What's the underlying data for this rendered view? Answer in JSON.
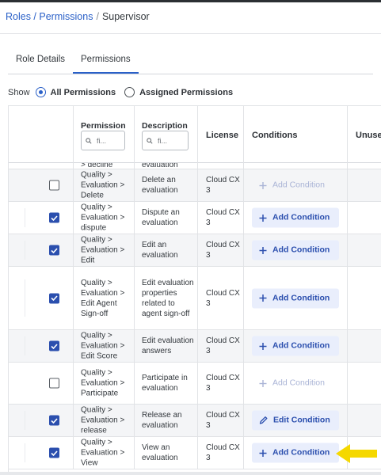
{
  "breadcrumb": {
    "link": "Roles / Permissions",
    "sep": "/",
    "current": "Supervisor"
  },
  "tabs": [
    {
      "label": "Role Details",
      "active": false
    },
    {
      "label": "Permissions",
      "active": true
    }
  ],
  "show": {
    "label": "Show",
    "options": [
      {
        "label": "All Permissions",
        "checked": true
      },
      {
        "label": "Assigned Permissions",
        "checked": false
      }
    ]
  },
  "table": {
    "headers": {
      "permission": "Permission",
      "description": "Description",
      "license": "License",
      "conditions": "Conditions",
      "unused": "Unuse"
    },
    "filter_placeholder": "fi...",
    "partial_top": {
      "permission": "> decline",
      "description": "evaluation"
    },
    "rows": [
      {
        "checked": false,
        "permission": "Quality > Evaluation > Delete",
        "description": "Delete an evaluation",
        "license": "Cloud CX 3",
        "condition": {
          "label": "Add Condition",
          "icon": "plus-icon",
          "enabled": false
        }
      },
      {
        "checked": true,
        "permission": "Quality > Evaluation > dispute",
        "description": "Dispute an evaluation",
        "license": "Cloud CX 3",
        "condition": {
          "label": "Add Condition",
          "icon": "plus-icon",
          "enabled": true
        }
      },
      {
        "checked": true,
        "permission": "Quality > Evaluation > Edit",
        "description": "Edit an evaluation",
        "license": "Cloud CX 3",
        "condition": {
          "label": "Add Condition",
          "icon": "plus-icon",
          "enabled": true
        }
      },
      {
        "checked": true,
        "permission": "Quality > Evaluation > Edit Agent Sign-off",
        "description": "Edit evaluation properties related to agent sign-off",
        "license": "Cloud CX 3",
        "condition": {
          "label": "Add Condition",
          "icon": "plus-icon",
          "enabled": true
        }
      },
      {
        "checked": true,
        "permission": "Quality > Evaluation > Edit Score",
        "description": "Edit evaluation answers",
        "license": "Cloud CX 3",
        "condition": {
          "label": "Add Condition",
          "icon": "plus-icon",
          "enabled": true
        }
      },
      {
        "checked": false,
        "permission": "Quality > Evaluation > Participate",
        "description": "Participate in evaluation",
        "license": "Cloud CX 3",
        "condition": {
          "label": "Add Condition",
          "icon": "plus-icon",
          "enabled": false
        }
      },
      {
        "checked": true,
        "permission": "Quality > Evaluation > release",
        "description": "Release an evaluation",
        "license": "Cloud CX 3",
        "condition": {
          "label": "Edit Condition",
          "icon": "pencil-icon",
          "enabled": true
        }
      },
      {
        "checked": true,
        "permission": "Quality > Evaluation > View",
        "description": "View an evaluation",
        "license": "Cloud CX 3",
        "condition": {
          "label": "Add Condition",
          "icon": "plus-icon",
          "enabled": true
        }
      }
    ]
  },
  "colors": {
    "accent": "#2a60c8",
    "checkbox": "#2b4fae",
    "button_bg": "#e9eefc",
    "arrow": "#f5d800"
  },
  "annotation": {
    "icon": "yellow-arrow-icon"
  }
}
